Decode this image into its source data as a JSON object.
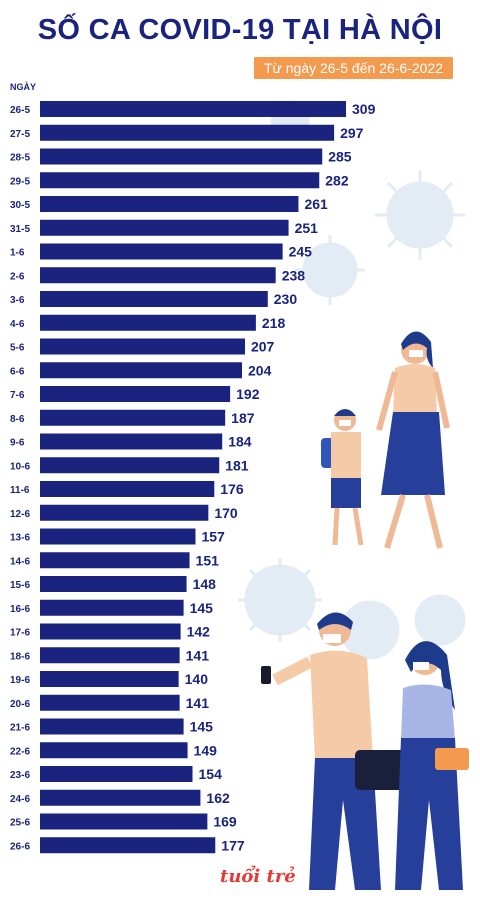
{
  "header": {
    "title": "SỐ CA COVID-19 TẠI HÀ NỘI",
    "subtitle": "Từ ngày 26-5 đến 26-6-2022"
  },
  "logo": {
    "text": "tuổi trẻ"
  },
  "chart_data": {
    "type": "bar",
    "orientation": "horizontal",
    "title": "SỐ CA COVID-19 TẠI HÀ NỘI",
    "subtitle": "Từ ngày 26-5 đến 26-6-2022",
    "axis_label": "NGÀY",
    "categories": [
      "26-5",
      "27-5",
      "28-5",
      "29-5",
      "30-5",
      "31-5",
      "1-6",
      "2-6",
      "3-6",
      "4-6",
      "5-6",
      "6-6",
      "7-6",
      "8-6",
      "9-6",
      "10-6",
      "11-6",
      "12-6",
      "13-6",
      "14-6",
      "15-6",
      "16-6",
      "17-6",
      "18-6",
      "19-6",
      "20-6",
      "21-6",
      "22-6",
      "23-6",
      "24-6",
      "25-6",
      "26-6"
    ],
    "values": [
      309,
      297,
      285,
      282,
      261,
      251,
      245,
      238,
      230,
      218,
      207,
      204,
      192,
      187,
      184,
      181,
      176,
      170,
      157,
      151,
      148,
      145,
      142,
      141,
      140,
      141,
      145,
      149,
      154,
      162,
      169,
      177
    ],
    "bar_color": "#1a237e",
    "label_color": "#1a237e",
    "grid": false,
    "legend": "none"
  },
  "colors": {
    "accent": "#f49a4f",
    "primary": "#1a237e",
    "virus": "#dde7f1"
  }
}
